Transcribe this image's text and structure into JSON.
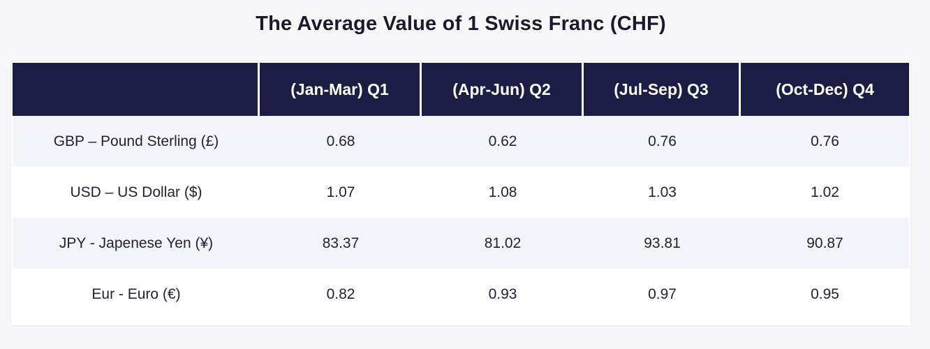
{
  "chart_data": {
    "type": "table",
    "title": "The Average Value of 1 Swiss Franc (CHF)",
    "columns": [
      "",
      "(Jan-Mar) Q1",
      "(Apr-Jun) Q2",
      "(Jul-Sep) Q3",
      "(Oct-Dec) Q4"
    ],
    "rows": [
      {
        "label": "GBP – Pound Sterling (£)",
        "values": [
          "0.68",
          "0.62",
          "0.76",
          "0.76"
        ]
      },
      {
        "label": "USD – US Dollar ($)",
        "values": [
          "1.07",
          "1.08",
          "1.03",
          "1.02"
        ]
      },
      {
        "label": "JPY - Japenese Yen (¥)",
        "values": [
          "83.37",
          "81.02",
          "93.81",
          "90.87"
        ]
      },
      {
        "label": "Eur - Euro (€)",
        "values": [
          "0.82",
          "0.93",
          "0.97",
          "0.95"
        ]
      }
    ]
  },
  "colors": {
    "header_bg": "#1c1d44",
    "header_text": "#ffffff",
    "row_stripe": "#f4f5fa"
  }
}
